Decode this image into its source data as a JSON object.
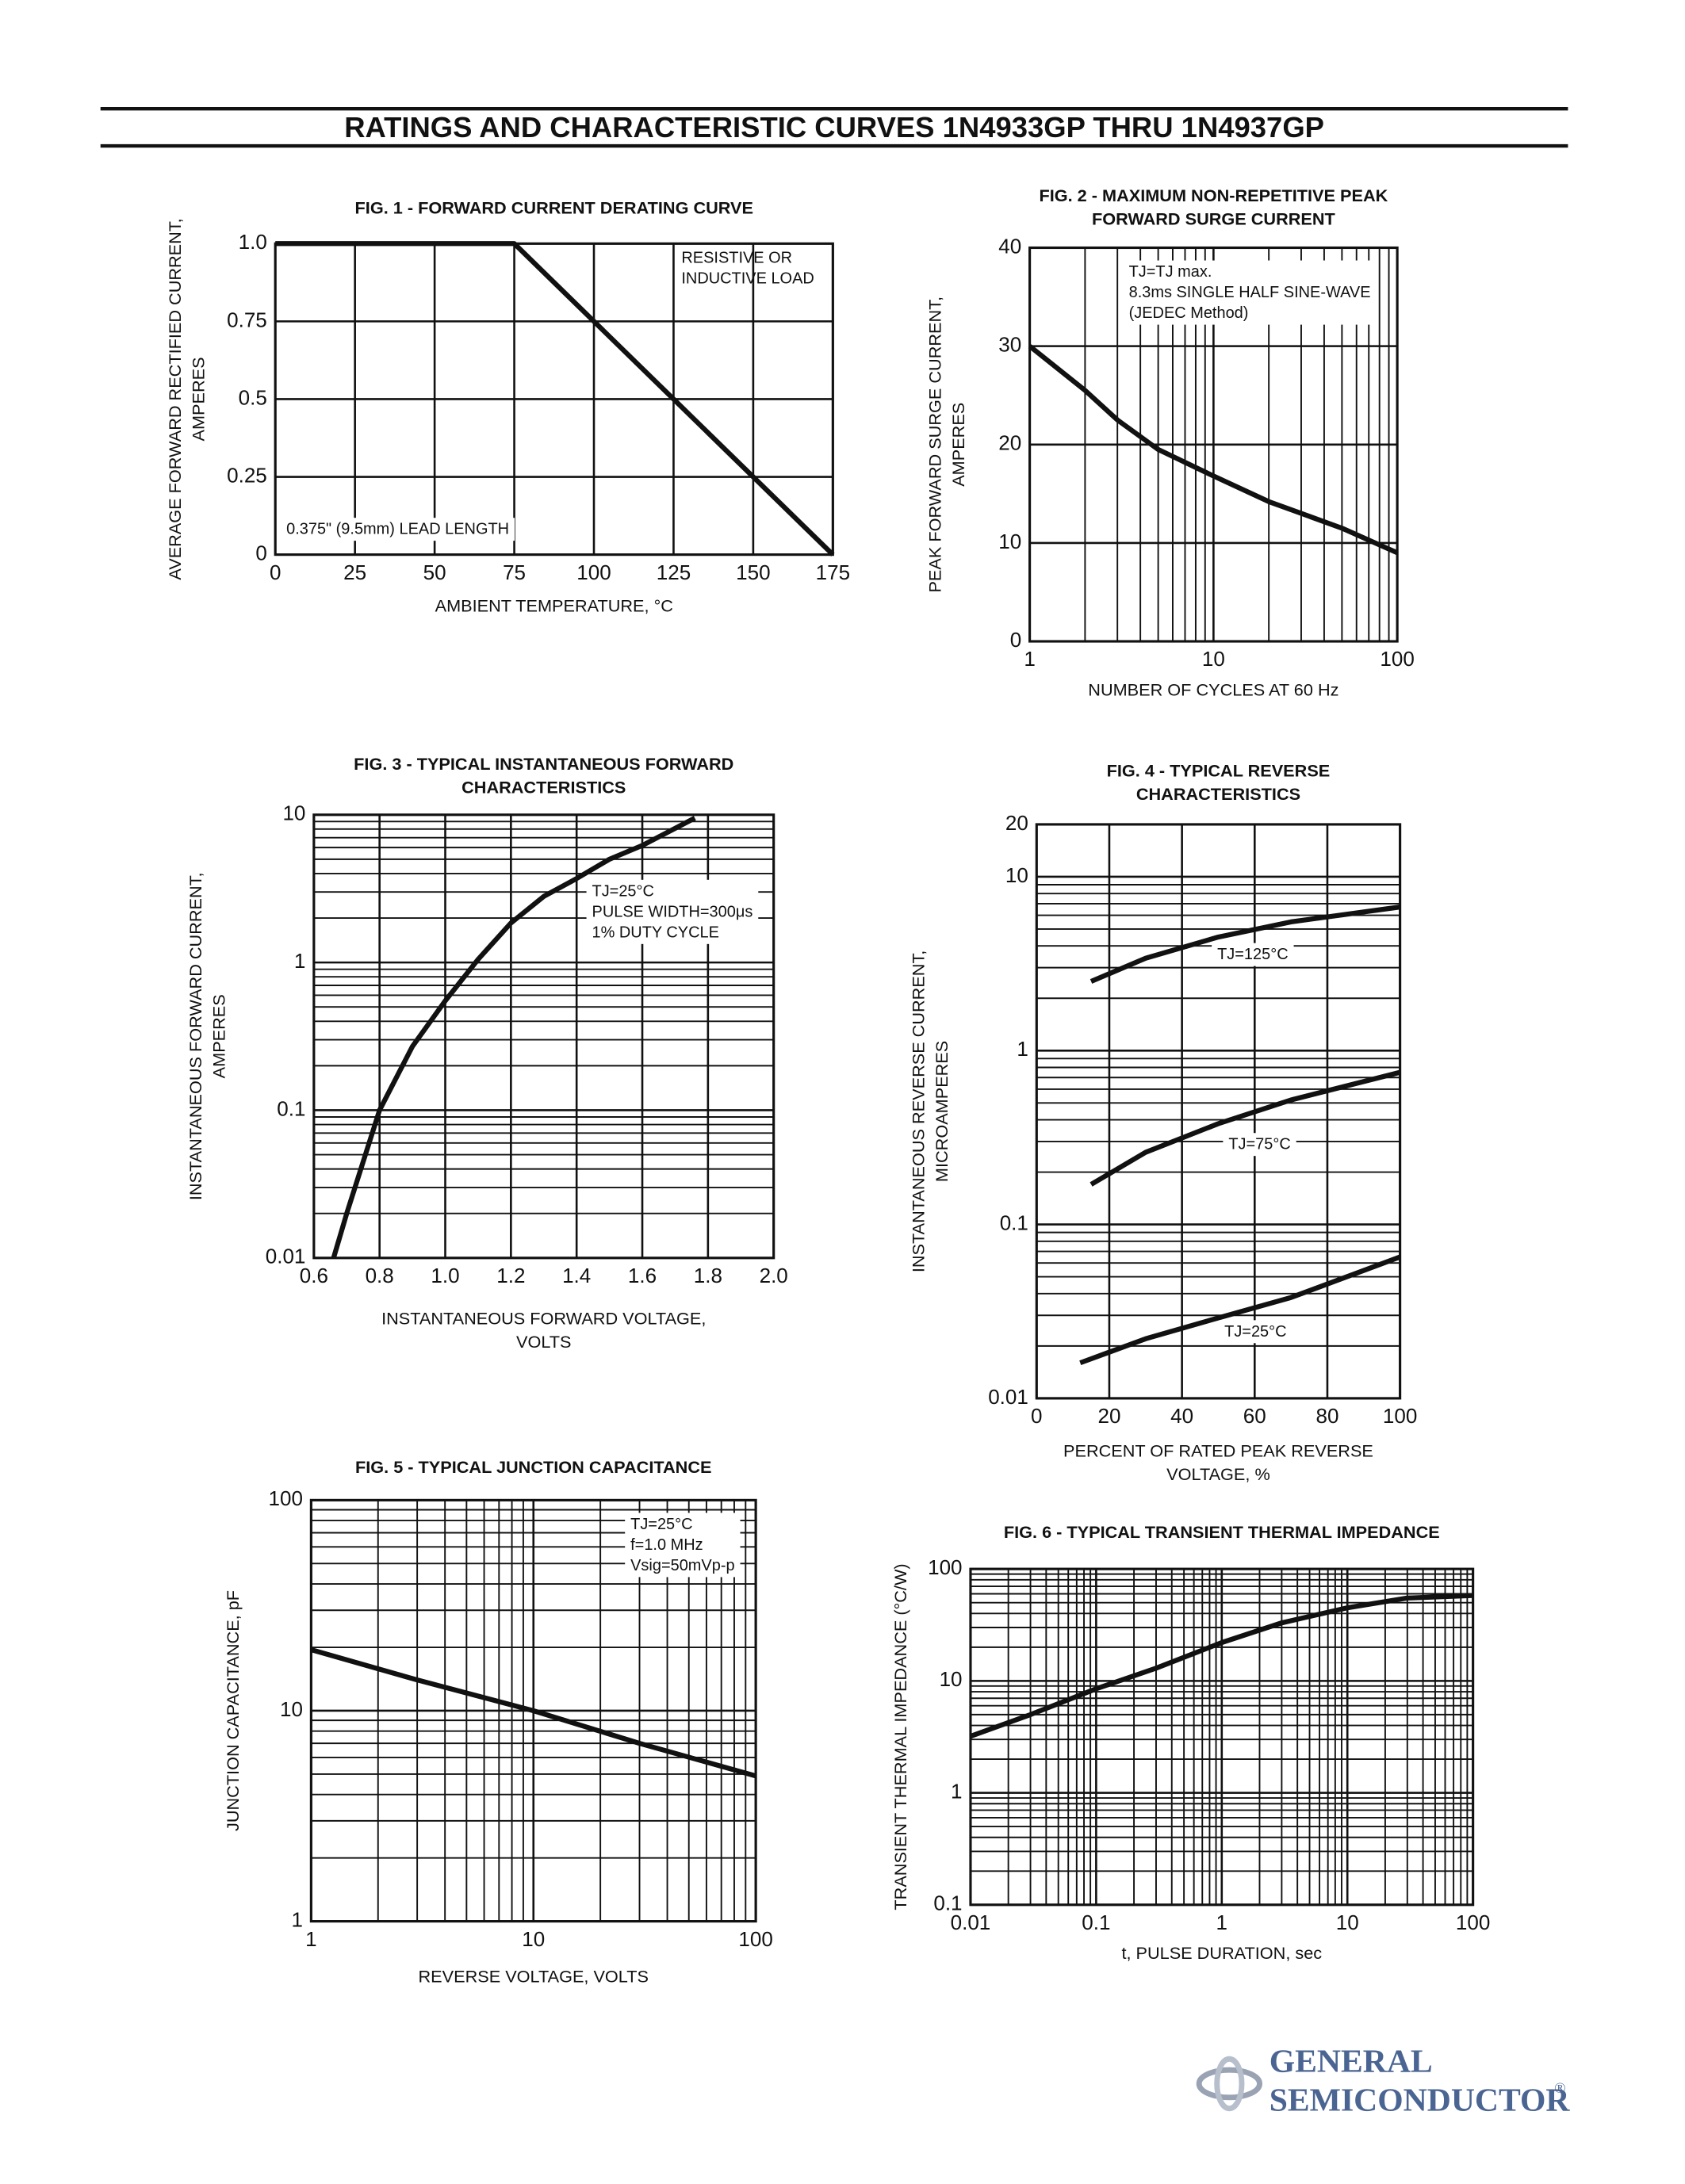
{
  "header": {
    "title": "RATINGS AND CHARACTERISTIC CURVES 1N4933GP THRU 1N4937GP"
  },
  "chart_data": [
    {
      "type": "line",
      "title": [
        "FIG. 1 - FORWARD CURRENT DERATING CURVE"
      ],
      "xlabel": [
        "AMBIENT TEMPERATURE, °C"
      ],
      "ylabel": [
        "AVERAGE FORWARD RECTIFIED CURRENT,",
        "AMPERES"
      ],
      "x": [
        0,
        75,
        175
      ],
      "series": [
        {
          "color": "#111111",
          "values": [
            1,
            1,
            0
          ]
        }
      ],
      "xlim": [
        0,
        175
      ],
      "ylim": [
        0,
        1
      ],
      "xticks": [
        0,
        25,
        50,
        75,
        100,
        125,
        150,
        175
      ],
      "yticks": [
        0,
        0.25,
        0.5,
        0.75,
        {
          "value": 1,
          "label": "1.0"
        }
      ],
      "grid": true,
      "annotations": [
        [
          "RESISTIVE OR",
          "INDUCTIVE LOAD"
        ],
        [
          "0.375\" (9.5mm) LEAD LENGTH"
        ]
      ]
    },
    {
      "type": "line",
      "title": [
        "FIG. 2 - MAXIMUM NON-REPETITIVE PEAK",
        "FORWARD SURGE CURRENT"
      ],
      "xlabel": [
        "NUMBER OF CYCLES AT 60 Hz"
      ],
      "ylabel": [
        "PEAK FORWARD SURGE CURRENT,",
        "AMPERES"
      ],
      "x": [
        1,
        2,
        3,
        5,
        10,
        20,
        50,
        100
      ],
      "series": [
        {
          "color": "#111111",
          "values": [
            30,
            25.5,
            22.5,
            19.5,
            16.8,
            14.2,
            11.5,
            9
          ]
        }
      ],
      "xscale": "log",
      "xlim": [
        1,
        100
      ],
      "ylim": [
        0,
        40
      ],
      "xticks": [
        1,
        10,
        100
      ],
      "yticks": [
        0,
        10,
        20,
        30,
        40
      ],
      "grid": true,
      "annotations": [
        [
          "TJ=TJ max.",
          "8.3ms SINGLE HALF SINE-WAVE",
          "(JEDEC Method)"
        ]
      ]
    },
    {
      "type": "line",
      "title": [
        "FIG. 3 - TYPICAL INSTANTANEOUS FORWARD",
        "CHARACTERISTICS"
      ],
      "xlabel": [
        "INSTANTANEOUS FORWARD VOLTAGE,",
        "VOLTS"
      ],
      "ylabel": [
        "INSTANTANEOUS FORWARD CURRENT,",
        "AMPERES"
      ],
      "x": [
        0.66,
        0.7,
        0.8,
        0.9,
        1.0,
        1.1,
        1.2,
        1.3,
        1.4,
        1.5,
        1.6,
        1.76
      ],
      "series": [
        {
          "color": "#111111",
          "values": [
            0.01,
            0.02,
            0.1,
            0.27,
            0.55,
            1.05,
            1.85,
            2.8,
            3.7,
            5.0,
            6.2,
            9.5
          ]
        }
      ],
      "yscale": "log",
      "xlim": [
        0.6,
        2.0
      ],
      "ylim": [
        0.01,
        10
      ],
      "xticks": [
        0.6,
        0.8,
        {
          "value": 1,
          "label": "1.0"
        },
        1.2,
        1.4,
        1.6,
        1.8,
        {
          "value": 2,
          "label": "2.0"
        }
      ],
      "yticks": [
        0.01,
        0.1,
        1,
        10
      ],
      "grid": true,
      "annotations": [
        [
          "TJ=25°C",
          "PULSE WIDTH=300μs",
          "1% DUTY CYCLE"
        ]
      ]
    },
    {
      "type": "line",
      "title": [
        "FIG. 4 - TYPICAL REVERSE",
        "CHARACTERISTICS"
      ],
      "xlabel": [
        "PERCENT OF RATED PEAK REVERSE",
        "VOLTAGE, %"
      ],
      "ylabel": [
        "INSTANTANEOUS REVERSE CURRENT,",
        "MICROAMPERES"
      ],
      "series": [
        {
          "name": "TJ=125°C",
          "color": "#111111",
          "x": [
            15,
            30,
            50,
            70,
            100
          ],
          "values": [
            2.5,
            3.4,
            4.5,
            5.5,
            6.7
          ]
        },
        {
          "name": "TJ=75°C",
          "color": "#111111",
          "x": [
            15,
            30,
            50,
            70,
            100
          ],
          "values": [
            0.17,
            0.26,
            0.38,
            0.52,
            0.75
          ]
        },
        {
          "name": "TJ=25°C",
          "color": "#111111",
          "x": [
            12,
            30,
            50,
            70,
            100
          ],
          "values": [
            0.016,
            0.022,
            0.029,
            0.038,
            0.065
          ]
        }
      ],
      "yscale": "log",
      "xlim": [
        0,
        100
      ],
      "ylim": [
        0.01,
        20
      ],
      "xticks": [
        0,
        20,
        40,
        60,
        80,
        100
      ],
      "yticks": [
        0.01,
        0.1,
        1,
        10,
        20
      ],
      "grid": true
    },
    {
      "type": "line",
      "title": [
        "FIG. 5 - TYPICAL JUNCTION CAPACITANCE"
      ],
      "xlabel": [
        "REVERSE VOLTAGE, VOLTS"
      ],
      "ylabel": [
        "JUNCTION CAPACITANCE, pF"
      ],
      "x": [
        1,
        3,
        10,
        30,
        100
      ],
      "series": [
        {
          "color": "#111111",
          "values": [
            19.5,
            14,
            10,
            7,
            4.9
          ]
        }
      ],
      "xscale": "log",
      "yscale": "log",
      "xlim": [
        1,
        100
      ],
      "ylim": [
        1,
        100
      ],
      "xticks": [
        1,
        10,
        100
      ],
      "yticks": [
        1,
        10,
        100
      ],
      "grid": true,
      "annotations": [
        [
          "TJ=25°C",
          "f=1.0 MHz",
          "Vsig=50mVp-p"
        ]
      ]
    },
    {
      "type": "line",
      "title": [
        "FIG. 6 - TYPICAL TRANSIENT THERMAL IMPEDANCE"
      ],
      "xlabel": [
        "t, PULSE DURATION, sec"
      ],
      "ylabel": [
        "TRANSIENT THERMAL IMPEDANCE (°C/W)"
      ],
      "x": [
        0.01,
        0.03,
        0.1,
        0.3,
        1,
        3,
        10,
        30,
        100
      ],
      "series": [
        {
          "color": "#111111",
          "values": [
            3.2,
            5,
            8.5,
            13,
            22,
            33,
            45,
            55,
            58
          ]
        }
      ],
      "xscale": "log",
      "yscale": "log",
      "xlim": [
        0.01,
        100
      ],
      "ylim": [
        0.1,
        100
      ],
      "xticks": [
        0.01,
        0.1,
        1,
        10,
        100
      ],
      "yticks": [
        0.1,
        1,
        10,
        100
      ],
      "grid": true
    }
  ],
  "logo": {
    "line1": "GENERAL",
    "line2": "SEMICONDUCTOR",
    "mark": "®"
  }
}
